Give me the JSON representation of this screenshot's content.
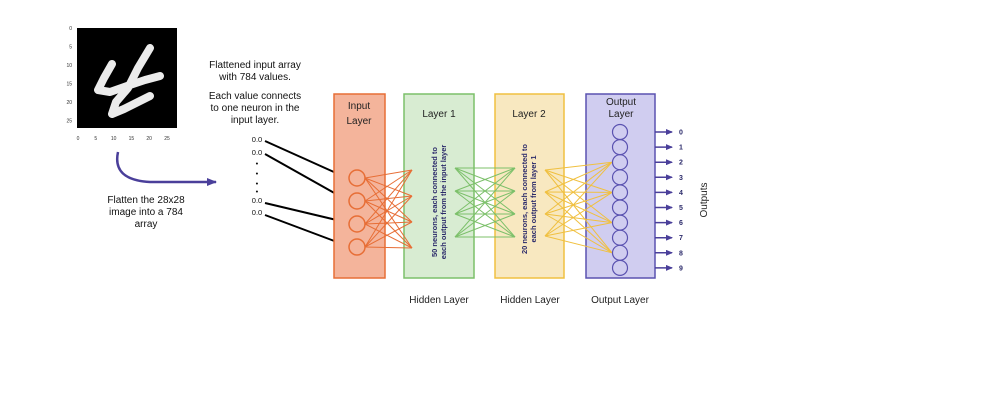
{
  "mnist": {
    "x_ticks": [
      "0",
      "5",
      "10",
      "15",
      "20",
      "25"
    ],
    "y_ticks": [
      "0",
      "5",
      "10",
      "15",
      "20",
      "25"
    ]
  },
  "annotations": {
    "flattened_line1": "Flattened input array",
    "flattened_line2": "with 784 values.",
    "connects_line1": "Each value connects",
    "connects_line2": "to one neuron in the",
    "connects_line3": "input layer.",
    "flatten_line1": "Flatten the 28x28",
    "flatten_line2": "image into a 784",
    "flatten_line3": "array"
  },
  "input_array": {
    "values": [
      "0.0",
      "0.0",
      "•",
      "•",
      "•",
      "•",
      "0.0",
      "0.0"
    ]
  },
  "layers": {
    "input": {
      "title_line1": "Input",
      "title_line2": "Layer",
      "neuron_count": 4
    },
    "layer1": {
      "title": "Layer 1",
      "desc_line1": "50 neurons, each connected to",
      "desc_line2": "each output from the input layer",
      "caption": "Hidden Layer"
    },
    "layer2": {
      "title": "Layer 2",
      "desc_line1": "20 neurons, each connected to",
      "desc_line2": "each output from layer 1",
      "caption": "Hidden Layer"
    },
    "output": {
      "title_line1": "Output",
      "title_line2": "Layer",
      "caption": "Output Layer",
      "neuron_count": 10
    }
  },
  "outputs": {
    "labels": [
      "0",
      "1",
      "2",
      "3",
      "4",
      "5",
      "6",
      "7",
      "8",
      "9"
    ],
    "title": "Outputs"
  },
  "colors": {
    "input_fill": "#f4b49b",
    "input_stroke": "#e76e36",
    "layer1_fill": "#d8ecd2",
    "layer1_stroke": "#7cc06a",
    "layer2_fill": "#f8e8c0",
    "layer2_stroke": "#f0c040",
    "output_fill": "#d0cdf0",
    "output_stroke": "#5a52b0",
    "arrow_purple": "#4a3f9a",
    "dark_text": "#2b2a6a"
  }
}
